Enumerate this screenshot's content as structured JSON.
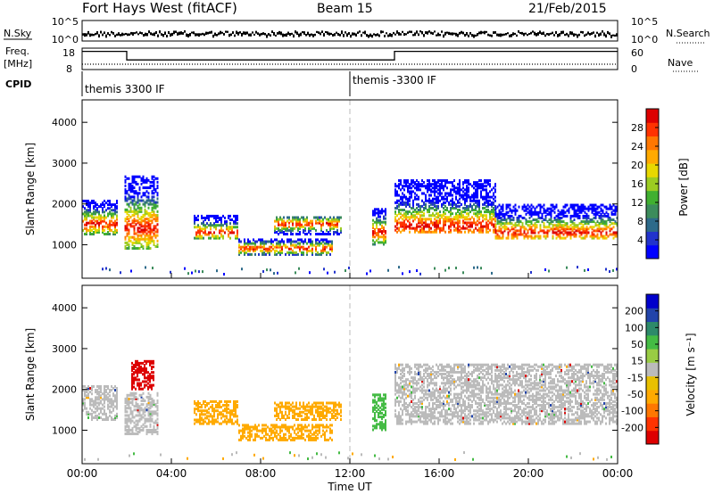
{
  "header": {
    "station": "Fort Hays West (fitACF)",
    "beam": "Beam 15",
    "date": "21/Feb/2015"
  },
  "status_panels": {
    "nsky_label": "N.Sky",
    "nsearch_label": "N.Search",
    "freq_label_1": "Freq.",
    "freq_label_2": "[MHz]",
    "nave_label": "Nave",
    "cpid_label": "CPID",
    "noise_left_ticks": [
      "10^5",
      "10^0"
    ],
    "noise_right_ticks": [
      "10^5",
      "10^0"
    ],
    "freq_left_ticks": [
      "18",
      "8"
    ],
    "freq_right_ticks": [
      "60",
      "0"
    ],
    "cpid_segments": [
      {
        "label": "themis 3300 IF",
        "start_hour": 0
      },
      {
        "label": "themis -3300 IF",
        "start_hour": 12
      }
    ],
    "freq_steps": [
      {
        "from": 0,
        "to": 2,
        "mhz": 16.5
      },
      {
        "from": 2,
        "to": 14,
        "mhz": 12.5
      },
      {
        "from": 14,
        "to": 24,
        "mhz": 16.5
      }
    ]
  },
  "chart_data": [
    {
      "type": "heatmap",
      "title": "",
      "xlabel": "",
      "ylabel": "Slant Range [km]",
      "xlim": [
        0,
        24
      ],
      "ylim": [
        180,
        4550
      ],
      "yticks": [
        "1000",
        "2000",
        "3000",
        "4000"
      ],
      "colorbar": {
        "label": "Power [dB]",
        "ticks": [
          "28",
          "24",
          "20",
          "16",
          "12",
          "8",
          "4"
        ],
        "colors": [
          "#0000ff",
          "#2233cc",
          "#2d6a8a",
          "#3c8c5c",
          "#41b030",
          "#9ccc22",
          "#e8d800",
          "#ffaa00",
          "#ff7700",
          "#ff3300",
          "#dd0000"
        ]
      },
      "bands": [
        {
          "x0": 0.0,
          "x1": 1.6,
          "y0": 1250,
          "y1": 2100,
          "peak": 1500
        },
        {
          "x0": 1.9,
          "x1": 3.4,
          "y0": 900,
          "y1": 2700,
          "peak": 1400
        },
        {
          "x0": 5.0,
          "x1": 7.0,
          "y0": 1150,
          "y1": 1700,
          "peak": 1300
        },
        {
          "x0": 7.0,
          "x1": 11.2,
          "y0": 750,
          "y1": 1150,
          "peak": 900
        },
        {
          "x0": 8.6,
          "x1": 11.6,
          "y0": 1250,
          "y1": 1700,
          "peak": 1500
        },
        {
          "x0": 13.0,
          "x1": 13.6,
          "y0": 1000,
          "y1": 1900,
          "peak": 1300
        },
        {
          "x0": 14.0,
          "x1": 18.5,
          "y0": 1300,
          "y1": 2600,
          "peak": 1450
        },
        {
          "x0": 18.5,
          "x1": 24.0,
          "y0": 1150,
          "y1": 2000,
          "peak": 1300
        }
      ]
    },
    {
      "type": "heatmap",
      "title": "",
      "xlabel": "Time UT",
      "ylabel": "Slant Range [km]",
      "xlim": [
        0,
        24
      ],
      "ylim": [
        180,
        4550
      ],
      "xticks": [
        "00:00",
        "04:00",
        "08:00",
        "12:00",
        "16:00",
        "20:00",
        "00:00"
      ],
      "yticks": [
        "1000",
        "2000",
        "3000",
        "4000"
      ],
      "colorbar": {
        "label": "Velocity [m s⁻¹]",
        "ticks": [
          "200",
          "100",
          "50",
          "15",
          "-15",
          "-50",
          "-100",
          "-200"
        ],
        "colors": [
          "#dd0000",
          "#ff3300",
          "#ff7700",
          "#ffaa00",
          "#e8c000",
          "#bbbbbb",
          "#99cc44",
          "#44bb44",
          "#2d8a6a",
          "#2244aa",
          "#0000cc"
        ]
      },
      "bands": [
        {
          "x0": 0.0,
          "x1": 1.6,
          "y0": 1250,
          "y1": 2100,
          "v": "ground"
        },
        {
          "x0": 1.9,
          "x1": 3.4,
          "y0": 900,
          "y1": 1900,
          "v": "ground"
        },
        {
          "x0": 2.2,
          "x1": 3.2,
          "y0": 2000,
          "y1": 2700,
          "v": "-200"
        },
        {
          "x0": 5.0,
          "x1": 7.0,
          "y0": 1150,
          "y1": 1700,
          "v": "-50"
        },
        {
          "x0": 7.0,
          "x1": 11.2,
          "y0": 750,
          "y1": 1150,
          "v": "-50"
        },
        {
          "x0": 8.6,
          "x1": 11.6,
          "y0": 1250,
          "y1": 1700,
          "v": "-50"
        },
        {
          "x0": 13.0,
          "x1": 13.6,
          "y0": 1000,
          "y1": 1900,
          "v": "50"
        },
        {
          "x0": 14.0,
          "x1": 24.0,
          "y0": 1150,
          "y1": 2600,
          "v": "ground"
        }
      ]
    }
  ]
}
